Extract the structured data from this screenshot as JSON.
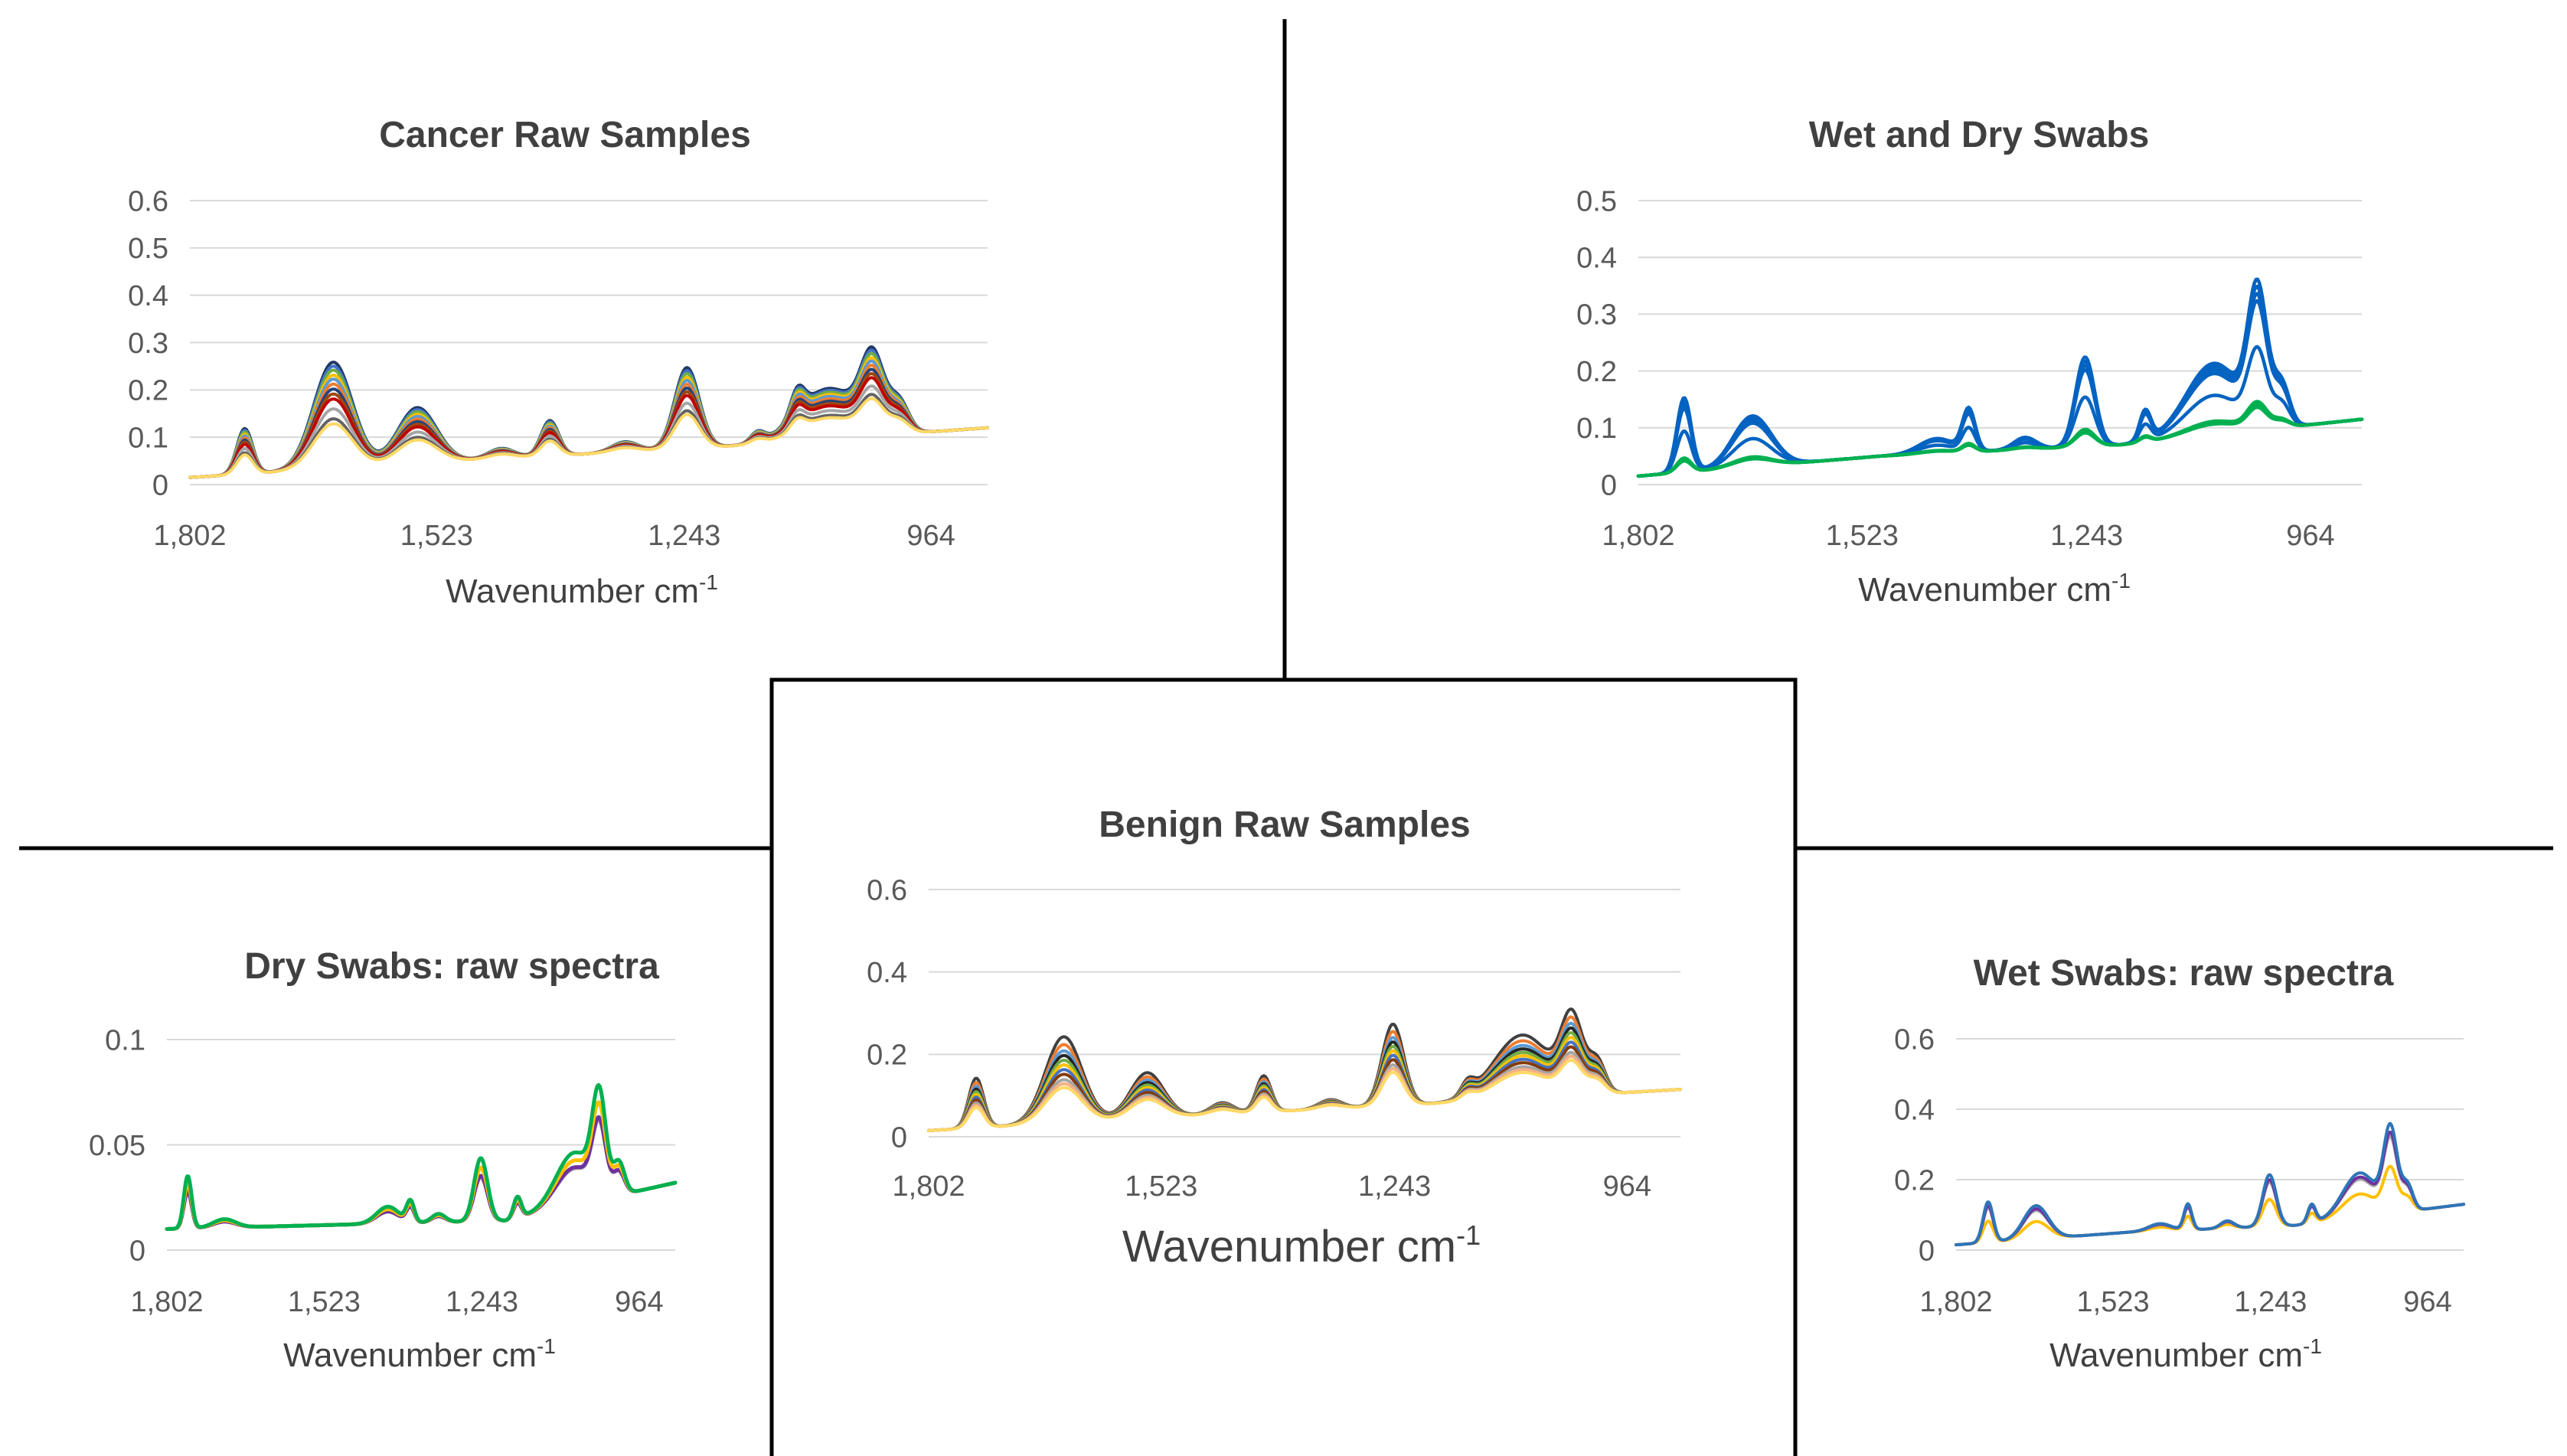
{
  "chart_data": [
    {
      "id": "cancer",
      "type": "line",
      "title": "Cancer Raw Samples",
      "xlabel": "Wavenumber cm",
      "xlabel_sup": "-1",
      "x_ticks": [
        "1,802",
        "1,523",
        "1,243",
        "964"
      ],
      "x_tick_values": [
        1802,
        1523,
        1243,
        964
      ],
      "xlim": [
        1802,
        900
      ],
      "y_ticks": [
        "0.6",
        "0.5",
        "0.4",
        "0.3",
        "0.2",
        "0.1",
        "0"
      ],
      "y_tick_values": [
        0.6,
        0.5,
        0.4,
        0.3,
        0.2,
        0.1,
        0
      ],
      "ylim": [
        0,
        0.6
      ],
      "grid": true,
      "peaks": [
        {
          "x": 1740,
          "h": 0.09,
          "w": 9
        },
        {
          "x": 1640,
          "h": 0.21,
          "w": 22
        },
        {
          "x": 1545,
          "h": 0.11,
          "w": 22
        },
        {
          "x": 1450,
          "h": 0.02,
          "w": 15
        },
        {
          "x": 1395,
          "h": 0.07,
          "w": 10
        },
        {
          "x": 1310,
          "h": 0.02,
          "w": 15
        },
        {
          "x": 1240,
          "h": 0.16,
          "w": 14
        },
        {
          "x": 1160,
          "h": 0.02,
          "w": 8
        },
        {
          "x": 1115,
          "h": 0.05,
          "w": 8
        },
        {
          "x": 1080,
          "h": 0.1,
          "w": 34
        },
        {
          "x": 1030,
          "h": 0.14,
          "w": 13
        },
        {
          "x": 1000,
          "h": 0.06,
          "w": 11
        }
      ],
      "base": [
        0.015,
        0.05,
        0.08,
        0.12
      ],
      "series": [
        {
          "name": "s1",
          "color": "#1f3864",
          "scale": 1.07
        },
        {
          "name": "s2",
          "color": "#4472c4",
          "scale": 1.03
        },
        {
          "name": "s3",
          "color": "#70ad47",
          "scale": 0.99
        },
        {
          "name": "s4",
          "color": "#ffc000",
          "scale": 0.94
        },
        {
          "name": "s5",
          "color": "#5b9bd5",
          "scale": 0.9
        },
        {
          "name": "s6",
          "color": "#ed7d31",
          "scale": 0.85
        },
        {
          "name": "s7",
          "color": "#264478",
          "scale": 0.8
        },
        {
          "name": "s8",
          "color": "#9e480e",
          "scale": 0.75
        },
        {
          "name": "s9",
          "color": "#c00000",
          "scale": 0.7
        },
        {
          "name": "s10",
          "color": "#a5a5a5",
          "scale": 0.6
        },
        {
          "name": "s11",
          "color": "#636363",
          "scale": 0.5
        },
        {
          "name": "s12",
          "color": "#ffd966",
          "scale": 0.45
        }
      ]
    },
    {
      "id": "wetdry",
      "type": "line",
      "title": "Wet and Dry Swabs",
      "xlabel": "Wavenumber cm",
      "xlabel_sup": "-1",
      "x_ticks": [
        "1,802",
        "1,523",
        "1,243",
        "964"
      ],
      "x_tick_values": [
        1802,
        1523,
        1243,
        964
      ],
      "xlim": [
        1802,
        900
      ],
      "y_ticks": [
        "0.5",
        "0.4",
        "0.3",
        "0.2",
        "0.1",
        "0"
      ],
      "y_tick_values": [
        0.5,
        0.4,
        0.3,
        0.2,
        0.1,
        0
      ],
      "ylim": [
        0,
        0.5
      ],
      "grid": true,
      "peaks": [
        {
          "x": 1745,
          "h": 0.125,
          "w": 9
        },
        {
          "x": 1660,
          "h": 0.085,
          "w": 24
        },
        {
          "x": 1430,
          "h": 0.025,
          "w": 22
        },
        {
          "x": 1390,
          "h": 0.07,
          "w": 8
        },
        {
          "x": 1320,
          "h": 0.02,
          "w": 14
        },
        {
          "x": 1245,
          "h": 0.15,
          "w": 12
        },
        {
          "x": 1170,
          "h": 0.05,
          "w": 7
        },
        {
          "x": 1085,
          "h": 0.12,
          "w": 34
        },
        {
          "x": 1030,
          "h": 0.22,
          "w": 12
        },
        {
          "x": 1000,
          "h": 0.07,
          "w": 10
        }
      ],
      "base": [
        0.015,
        0.05,
        0.07,
        0.115
      ],
      "series": [
        {
          "name": "wet-1",
          "color": "#0563c1",
          "scale": 1.05
        },
        {
          "name": "wet-2",
          "color": "#0563c1",
          "scale": 1.0
        },
        {
          "name": "wet-3",
          "color": "#0563c1",
          "scale": 0.95
        },
        {
          "name": "wet-4",
          "color": "#0563c1",
          "scale": 0.9
        },
        {
          "name": "wet-5",
          "color": "#0563c1",
          "scale": 0.58
        },
        {
          "name": "dry-1",
          "color": "#00b050",
          "scale": 0.2
        },
        {
          "name": "dry-2",
          "color": "#00b050",
          "scale": 0.18
        },
        {
          "name": "dry-3",
          "color": "#00b050",
          "scale": 0.16
        }
      ]
    },
    {
      "id": "benign",
      "type": "line",
      "title": "Benign Raw Samples",
      "xlabel": "Wavenumber cm",
      "xlabel_sup": "-1",
      "x_ticks": [
        "1,802",
        "1,523",
        "1,243",
        "964"
      ],
      "x_tick_values": [
        1802,
        1523,
        1243,
        964
      ],
      "xlim": [
        1802,
        900
      ],
      "y_ticks": [
        "0.6",
        "0.4",
        "0.2",
        "0"
      ],
      "y_tick_values": [
        0.6,
        0.4,
        0.2,
        0
      ],
      "ylim": [
        0,
        0.6
      ],
      "grid": true,
      "peaks": [
        {
          "x": 1745,
          "h": 0.11,
          "w": 9
        },
        {
          "x": 1640,
          "h": 0.19,
          "w": 22
        },
        {
          "x": 1540,
          "h": 0.1,
          "w": 20
        },
        {
          "x": 1450,
          "h": 0.025,
          "w": 14
        },
        {
          "x": 1400,
          "h": 0.08,
          "w": 9
        },
        {
          "x": 1320,
          "h": 0.02,
          "w": 14
        },
        {
          "x": 1245,
          "h": 0.18,
          "w": 13
        },
        {
          "x": 1155,
          "h": 0.03,
          "w": 8
        },
        {
          "x": 1090,
          "h": 0.14,
          "w": 34
        },
        {
          "x": 1030,
          "h": 0.16,
          "w": 13
        },
        {
          "x": 1000,
          "h": 0.07,
          "w": 10
        }
      ],
      "base": [
        0.015,
        0.05,
        0.08,
        0.115
      ],
      "series": [
        {
          "name": "s1",
          "color": "#404040",
          "scale": 1.1
        },
        {
          "name": "s2",
          "color": "#ed7d31",
          "scale": 1.0
        },
        {
          "name": "s3",
          "color": "#5b9bd5",
          "scale": 0.92
        },
        {
          "name": "s4",
          "color": "#262626",
          "scale": 0.86
        },
        {
          "name": "s5",
          "color": "#70ad47",
          "scale": 0.8
        },
        {
          "name": "s6",
          "color": "#ffc000",
          "scale": 0.74
        },
        {
          "name": "s7",
          "color": "#4472c4",
          "scale": 0.68
        },
        {
          "name": "s8",
          "color": "#843c0c",
          "scale": 0.62
        },
        {
          "name": "s9",
          "color": "#a5a5a5",
          "scale": 0.55
        },
        {
          "name": "s10",
          "color": "#f4b183",
          "scale": 0.5
        },
        {
          "name": "s11",
          "color": "#ffd966",
          "scale": 0.45
        }
      ]
    },
    {
      "id": "dry",
      "type": "line",
      "title": "Dry Swabs: raw spectra",
      "xlabel": "Wavenumber cm",
      "xlabel_sup": "-1",
      "x_ticks": [
        "1,802",
        "1,523",
        "1,243",
        "964"
      ],
      "x_tick_values": [
        1802,
        1523,
        1243,
        964
      ],
      "xlim": [
        1802,
        900
      ],
      "y_ticks": [
        "0.1",
        "0.05",
        "0"
      ],
      "y_tick_values": [
        0.1,
        0.05,
        0
      ],
      "ylim": [
        0,
        0.1
      ],
      "grid": true,
      "peaks": [
        {
          "x": 1765,
          "h": 0.025,
          "w": 7
        },
        {
          "x": 1700,
          "h": 0.004,
          "w": 20
        },
        {
          "x": 1410,
          "h": 0.008,
          "w": 20
        },
        {
          "x": 1370,
          "h": 0.01,
          "w": 7
        },
        {
          "x": 1320,
          "h": 0.004,
          "w": 12
        },
        {
          "x": 1245,
          "h": 0.03,
          "w": 12
        },
        {
          "x": 1180,
          "h": 0.01,
          "w": 7
        },
        {
          "x": 1080,
          "h": 0.025,
          "w": 32
        },
        {
          "x": 1035,
          "h": 0.045,
          "w": 12
        },
        {
          "x": 1000,
          "h": 0.015,
          "w": 10
        }
      ],
      "base": [
        0.01,
        0.012,
        0.014,
        0.032
      ],
      "series": [
        {
          "name": "gray",
          "color": "#a5a5a5",
          "scale": 0.7
        },
        {
          "name": "purple",
          "color": "#7030a0",
          "scale": 0.72
        },
        {
          "name": "yellow",
          "color": "#ffc000",
          "scale": 0.85
        },
        {
          "name": "green",
          "color": "#00b050",
          "scale": 1.0
        }
      ]
    },
    {
      "id": "wet",
      "type": "line",
      "title": "Wet Swabs: raw spectra",
      "xlabel": "Wavenumber cm",
      "xlabel_sup": "-1",
      "x_ticks": [
        "1,802",
        "1,523",
        "1,243",
        "964"
      ],
      "x_tick_values": [
        1802,
        1523,
        1243,
        964
      ],
      "xlim": [
        1802,
        900
      ],
      "y_ticks": [
        "0.6",
        "0.4",
        "0.2",
        "0"
      ],
      "y_tick_values": [
        0.6,
        0.4,
        0.2,
        0
      ],
      "ylim": [
        0,
        0.6
      ],
      "grid": true,
      "peaks": [
        {
          "x": 1745,
          "h": 0.11,
          "w": 9
        },
        {
          "x": 1660,
          "h": 0.09,
          "w": 22
        },
        {
          "x": 1440,
          "h": 0.02,
          "w": 20
        },
        {
          "x": 1390,
          "h": 0.07,
          "w": 7
        },
        {
          "x": 1320,
          "h": 0.02,
          "w": 12
        },
        {
          "x": 1245,
          "h": 0.14,
          "w": 12
        },
        {
          "x": 1170,
          "h": 0.05,
          "w": 7
        },
        {
          "x": 1085,
          "h": 0.12,
          "w": 30
        },
        {
          "x": 1030,
          "h": 0.22,
          "w": 12
        },
        {
          "x": 1000,
          "h": 0.07,
          "w": 10
        }
      ],
      "base": [
        0.015,
        0.05,
        0.07,
        0.13
      ],
      "series": [
        {
          "name": "yellow",
          "color": "#ffc000",
          "scale": 0.55
        },
        {
          "name": "gray",
          "color": "#a5a5a5",
          "scale": 0.9
        },
        {
          "name": "purple",
          "color": "#7030a0",
          "scale": 0.95
        },
        {
          "name": "teal",
          "color": "#2e75b6",
          "scale": 1.05
        }
      ]
    }
  ]
}
